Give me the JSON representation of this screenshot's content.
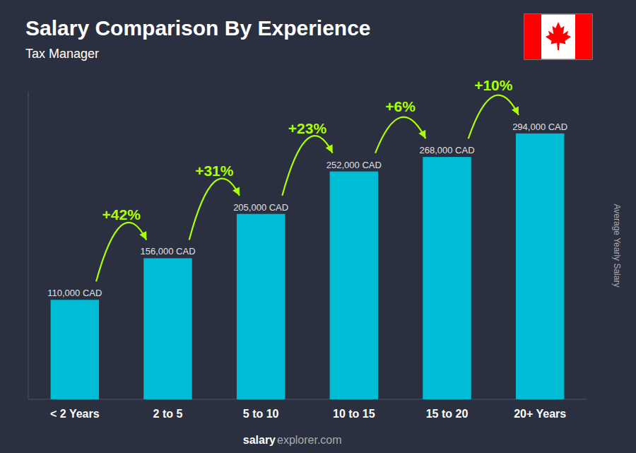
{
  "chart_data": {
    "type": "bar",
    "title": "Salary Comparison By Experience",
    "subtitle": "Tax Manager",
    "ylabel": "Average Yearly Salary",
    "footer": [
      "salary",
      "explorer.com"
    ],
    "categories": [
      "< 2 Years",
      "2 to 5",
      "5 to 10",
      "10 to 15",
      "15 to 20",
      "20+ Years"
    ],
    "values": [
      110000,
      156000,
      205000,
      252000,
      268000,
      294000
    ],
    "value_labels": [
      "110,000 CAD",
      "156,000 CAD",
      "205,000 CAD",
      "252,000 CAD",
      "268,000 CAD",
      "294,000 CAD"
    ],
    "data_labels": true,
    "annotations": [
      "+42%",
      "+31%",
      "+23%",
      "+6%",
      "+10%"
    ],
    "color": "#00bcd4",
    "ylim": [
      0,
      340000
    ],
    "tick_labels": "x",
    "grid": false
  }
}
